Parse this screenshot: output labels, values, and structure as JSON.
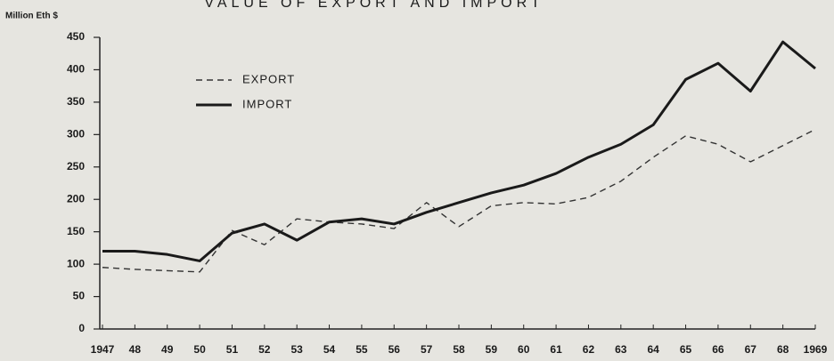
{
  "chart_data": {
    "type": "line",
    "title": "VALUE OF EXPORT AND IMPORT",
    "y_label": "Million Eth $",
    "categories": [
      "1947",
      "48",
      "49",
      "50",
      "51",
      "52",
      "53",
      "54",
      "55",
      "56",
      "57",
      "58",
      "59",
      "60",
      "61",
      "62",
      "63",
      "64",
      "65",
      "66",
      "67",
      "68",
      "1969"
    ],
    "series": [
      {
        "name": "EXPORT",
        "color": "#333333",
        "dashed": true,
        "values": [
          95,
          92,
          90,
          88,
          152,
          130,
          170,
          165,
          162,
          155,
          195,
          158,
          190,
          195,
          193,
          203,
          228,
          265,
          298,
          285,
          258,
          283,
          308
        ]
      },
      {
        "name": "IMPORT",
        "color": "#1a1a1a",
        "dashed": false,
        "values": [
          120,
          120,
          115,
          105,
          148,
          162,
          137,
          165,
          170,
          162,
          180,
          195,
          210,
          222,
          240,
          265,
          285,
          315,
          385,
          410,
          367,
          443,
          402
        ]
      }
    ],
    "ylim": [
      0,
      450
    ],
    "yticks": [
      0,
      50,
      100,
      150,
      200,
      250,
      300,
      350,
      400,
      450
    ],
    "grid": false,
    "legend": "upper left"
  }
}
